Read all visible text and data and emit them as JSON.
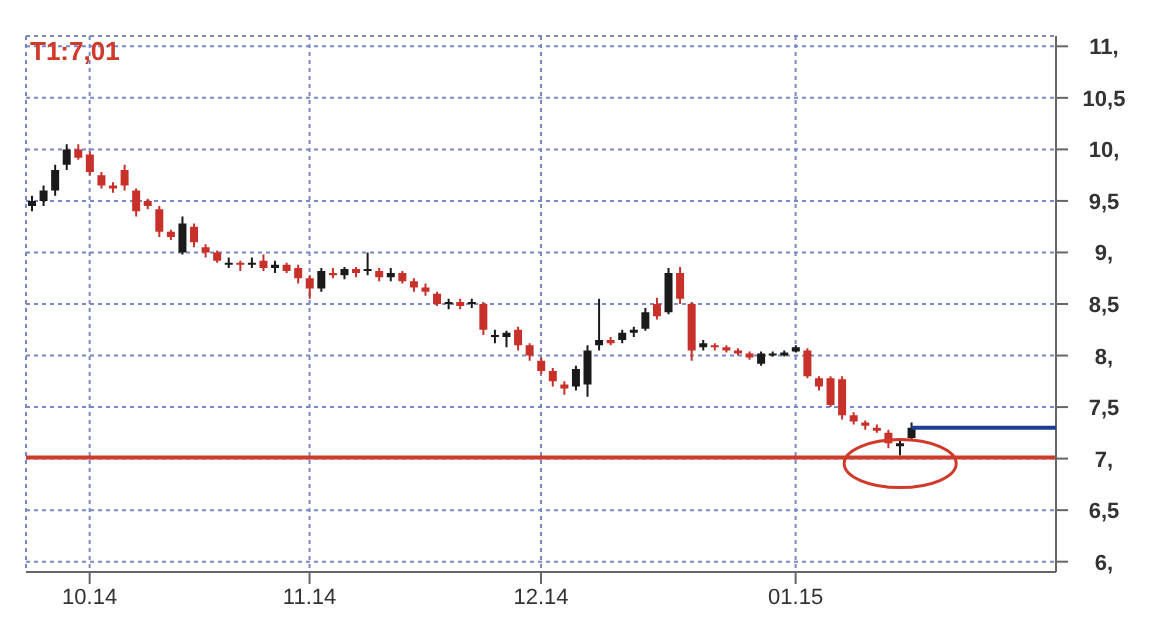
{
  "chart_data": {
    "type": "candlestick",
    "categories": [
      null,
      null,
      null,
      null,
      null,
      "10.14",
      null,
      null,
      null,
      null,
      null,
      null,
      null,
      null,
      null,
      null,
      null,
      null,
      null,
      null,
      null,
      null,
      null,
      null,
      "11.14",
      null,
      null,
      null,
      null,
      null,
      null,
      null,
      null,
      null,
      null,
      null,
      null,
      null,
      null,
      null,
      null,
      null,
      null,
      null,
      "12.14",
      null,
      null,
      null,
      null,
      null,
      null,
      null,
      null,
      null,
      null,
      null,
      null,
      null,
      null,
      null,
      null,
      null,
      null,
      null,
      null,
      null,
      "01.15",
      null,
      null,
      null,
      null,
      null,
      null,
      null,
      null,
      null,
      null,
      null,
      null,
      null,
      null,
      null,
      null,
      null,
      null,
      null,
      null,
      null,
      null
    ],
    "ohlc": [
      [
        9.45,
        9.55,
        9.4,
        9.5
      ],
      [
        9.5,
        9.65,
        9.45,
        9.6
      ],
      [
        9.6,
        9.85,
        9.55,
        9.8
      ],
      [
        9.85,
        10.05,
        9.8,
        10.0
      ],
      [
        10.0,
        10.05,
        9.9,
        9.92
      ],
      [
        9.95,
        9.98,
        9.75,
        9.78
      ],
      [
        9.75,
        9.78,
        9.62,
        9.65
      ],
      [
        9.65,
        9.68,
        9.58,
        9.62
      ],
      [
        9.8,
        9.85,
        9.6,
        9.65
      ],
      [
        9.6,
        9.62,
        9.35,
        9.4
      ],
      [
        9.5,
        9.52,
        9.42,
        9.45
      ],
      [
        9.42,
        9.45,
        9.15,
        9.2
      ],
      [
        9.2,
        9.22,
        9.12,
        9.15
      ],
      [
        9.0,
        9.35,
        8.98,
        9.28
      ],
      [
        9.25,
        9.28,
        9.05,
        9.1
      ],
      [
        9.05,
        9.08,
        8.95,
        9.0
      ],
      [
        9.0,
        9.02,
        8.9,
        8.92
      ],
      [
        8.88,
        8.95,
        8.85,
        8.9
      ],
      [
        8.9,
        8.92,
        8.82,
        8.88
      ],
      [
        8.88,
        8.95,
        8.85,
        8.9
      ],
      [
        8.92,
        8.98,
        8.82,
        8.85
      ],
      [
        8.85,
        8.92,
        8.8,
        8.88
      ],
      [
        8.88,
        8.9,
        8.8,
        8.82
      ],
      [
        8.85,
        8.88,
        8.7,
        8.75
      ],
      [
        8.75,
        8.78,
        8.55,
        8.65
      ],
      [
        8.65,
        8.85,
        8.62,
        8.82
      ],
      [
        8.8,
        8.85,
        8.75,
        8.78
      ],
      [
        8.78,
        8.86,
        8.74,
        8.84
      ],
      [
        8.84,
        8.86,
        8.76,
        8.8
      ],
      [
        8.82,
        9.0,
        8.78,
        8.84
      ],
      [
        8.82,
        8.85,
        8.72,
        8.76
      ],
      [
        8.76,
        8.85,
        8.72,
        8.8
      ],
      [
        8.8,
        8.82,
        8.7,
        8.72
      ],
      [
        8.72,
        8.75,
        8.62,
        8.66
      ],
      [
        8.66,
        8.7,
        8.58,
        8.62
      ],
      [
        8.6,
        8.62,
        8.48,
        8.5
      ],
      [
        8.5,
        8.55,
        8.45,
        8.52
      ],
      [
        8.52,
        8.55,
        8.45,
        8.48
      ],
      [
        8.5,
        8.55,
        8.46,
        8.52
      ],
      [
        8.5,
        8.52,
        8.2,
        8.25
      ],
      [
        8.18,
        8.25,
        8.12,
        8.2
      ],
      [
        8.18,
        8.24,
        8.08,
        8.22
      ],
      [
        8.25,
        8.28,
        8.05,
        8.1
      ],
      [
        8.1,
        8.12,
        7.95,
        8.0
      ],
      [
        7.95,
        7.98,
        7.82,
        7.85
      ],
      [
        7.85,
        7.88,
        7.7,
        7.75
      ],
      [
        7.72,
        7.75,
        7.62,
        7.68
      ],
      [
        7.7,
        7.9,
        7.66,
        7.87
      ],
      [
        7.72,
        8.1,
        7.6,
        8.05
      ],
      [
        8.1,
        8.55,
        8.05,
        8.15
      ],
      [
        8.15,
        8.18,
        8.1,
        8.12
      ],
      [
        8.15,
        8.25,
        8.12,
        8.22
      ],
      [
        8.22,
        8.28,
        8.18,
        8.25
      ],
      [
        8.26,
        8.46,
        8.24,
        8.42
      ],
      [
        8.5,
        8.56,
        8.35,
        8.38
      ],
      [
        8.42,
        8.85,
        8.4,
        8.8
      ],
      [
        8.8,
        8.86,
        8.5,
        8.55
      ],
      [
        8.5,
        8.52,
        7.95,
        8.05
      ],
      [
        8.08,
        8.15,
        8.05,
        8.12
      ],
      [
        8.1,
        8.12,
        8.05,
        8.08
      ],
      [
        8.08,
        8.1,
        8.03,
        8.05
      ],
      [
        8.05,
        8.07,
        8.0,
        8.02
      ],
      [
        8.02,
        8.04,
        7.96,
        7.98
      ],
      [
        7.92,
        8.04,
        7.9,
        8.02
      ],
      [
        8.0,
        8.04,
        7.99,
        8.02
      ],
      [
        8.0,
        8.05,
        7.99,
        8.03
      ],
      [
        8.04,
        8.1,
        8.03,
        8.08
      ],
      [
        8.05,
        8.07,
        7.78,
        7.8
      ],
      [
        7.78,
        7.8,
        7.66,
        7.7
      ],
      [
        7.78,
        7.8,
        7.5,
        7.52
      ],
      [
        7.77,
        7.8,
        7.38,
        7.42
      ],
      [
        7.42,
        7.45,
        7.33,
        7.36
      ],
      [
        7.35,
        7.37,
        7.28,
        7.32
      ],
      [
        7.3,
        7.33,
        7.25,
        7.27
      ],
      [
        7.25,
        7.28,
        7.1,
        7.15
      ],
      [
        7.12,
        7.17,
        7.03,
        7.15
      ],
      [
        7.2,
        7.35,
        7.18,
        7.3
      ],
      null,
      null,
      null,
      null,
      null,
      null,
      null,
      null,
      null,
      null,
      null,
      null
    ],
    "colors": [
      "#1a1a1a",
      "#1a1a1a",
      "#1a1a1a",
      "#1a1a1a",
      "#c8302a",
      "#c8302a",
      "#c8302a",
      "#c8302a",
      "#c8302a",
      "#c8302a",
      "#c8302a",
      "#c8302a",
      "#c8302a",
      "#1a1a1a",
      "#c8302a",
      "#c8302a",
      "#c8302a",
      "#1a1a1a",
      "#c8302a",
      "#1a1a1a",
      "#c8302a",
      "#1a1a1a",
      "#c8302a",
      "#c8302a",
      "#c8302a",
      "#1a1a1a",
      "#c8302a",
      "#1a1a1a",
      "#c8302a",
      "#1a1a1a",
      "#c8302a",
      "#1a1a1a",
      "#c8302a",
      "#c8302a",
      "#c8302a",
      "#c8302a",
      "#1a1a1a",
      "#c8302a",
      "#1a1a1a",
      "#c8302a",
      "#1a1a1a",
      "#1a1a1a",
      "#c8302a",
      "#c8302a",
      "#c8302a",
      "#c8302a",
      "#c8302a",
      "#1a1a1a",
      "#1a1a1a",
      "#1a1a1a",
      "#c8302a",
      "#1a1a1a",
      "#1a1a1a",
      "#1a1a1a",
      "#c8302a",
      "#1a1a1a",
      "#c8302a",
      "#c8302a",
      "#1a1a1a",
      "#c8302a",
      "#c8302a",
      "#c8302a",
      "#c8302a",
      "#1a1a1a",
      "#1a1a1a",
      "#1a1a1a",
      "#1a1a1a",
      "#c8302a",
      "#c8302a",
      "#c8302a",
      "#c8302a",
      "#c8302a",
      "#c8302a",
      "#c8302a",
      "#c8302a",
      "#1a1a1a",
      "#1a1a1a",
      null,
      null,
      null,
      null,
      null,
      null,
      null,
      null,
      null,
      null,
      null,
      null
    ],
    "ylim": [
      5.9,
      11.1
    ],
    "yticks": [
      {
        "value": 6,
        "label": "6,"
      },
      {
        "value": 6.5,
        "label": "6,5"
      },
      {
        "value": 7,
        "label": "7,"
      },
      {
        "value": 7.5,
        "label": "7,5"
      },
      {
        "value": 8,
        "label": "8,"
      },
      {
        "value": 8.5,
        "label": "8,5"
      },
      {
        "value": 9,
        "label": "9,"
      },
      {
        "value": 9.5,
        "label": "9,5"
      },
      {
        "value": 10,
        "label": "10,"
      },
      {
        "value": 10.5,
        "label": "10,5"
      },
      {
        "value": 11,
        "label": "11,"
      }
    ],
    "grid": true,
    "ref_lines": [
      {
        "axis": "y",
        "value": 7.01,
        "label": "T1:7,01",
        "color": "#d03a2a"
      },
      {
        "axis": "y",
        "value": 7.3,
        "color": "#1f3f8f"
      }
    ]
  }
}
